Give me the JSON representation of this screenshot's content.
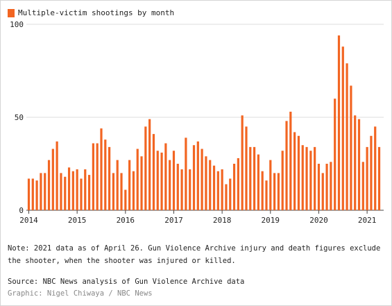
{
  "legend": {
    "label": "Multiple-victim shootings by month",
    "color": "#f26522"
  },
  "note": "Note: 2021 data as of April 26. Gun Violence Archive injury and death figures exclude the shooter, when the shooter was injured or killed.",
  "source": "Source: NBC News analysis of Gun Violence Archive data",
  "credit": "Graphic: Nigel Chiwaya / NBC News",
  "chart_data": {
    "type": "bar",
    "title": "",
    "xlabel": "",
    "ylabel": "",
    "ylim": [
      0,
      100
    ],
    "yticks": [
      0,
      50,
      100
    ],
    "xtick_labels": [
      "2014",
      "2015",
      "2016",
      "2017",
      "2018",
      "2019",
      "2020",
      "2021"
    ],
    "grid": true,
    "bar_color": "#f26522",
    "start": "2014-01",
    "values": [
      17,
      17,
      16,
      20,
      20,
      27,
      33,
      37,
      20,
      18,
      23,
      21,
      22,
      17,
      22,
      19,
      36,
      36,
      44,
      38,
      34,
      20,
      27,
      20,
      11,
      27,
      21,
      33,
      29,
      45,
      49,
      41,
      32,
      31,
      36,
      27,
      32,
      25,
      22,
      39,
      22,
      35,
      37,
      33,
      29,
      27,
      24,
      21,
      22,
      14,
      17,
      25,
      28,
      51,
      45,
      34,
      34,
      30,
      21,
      16,
      27,
      20,
      20,
      32,
      48,
      53,
      42,
      40,
      35,
      34,
      32,
      34,
      25,
      20,
      25,
      26,
      60,
      94,
      88,
      79,
      67,
      51,
      49,
      26,
      34,
      40,
      45,
      34
    ]
  }
}
